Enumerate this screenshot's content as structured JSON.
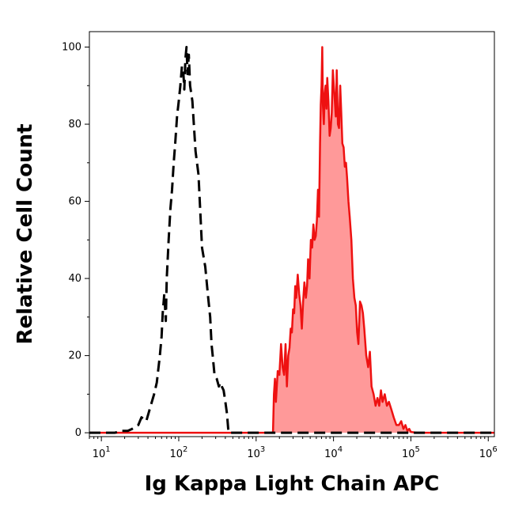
{
  "chart_data": {
    "type": "area",
    "title": "",
    "xlabel": "Ig Kappa Light Chain APC",
    "ylabel": "Relative Cell Count",
    "x_scale": "log",
    "xlim": [
      7,
      1200000
    ],
    "ylim": [
      -1,
      104
    ],
    "x_ticks": [
      {
        "value": 10,
        "base": "10",
        "exp": "1"
      },
      {
        "value": 100,
        "base": "10",
        "exp": "2"
      },
      {
        "value": 1000,
        "base": "10",
        "exp": "3"
      },
      {
        "value": 10000,
        "base": "10",
        "exp": "4"
      },
      {
        "value": 100000,
        "base": "10",
        "exp": "5"
      },
      {
        "value": 1000000,
        "base": "10",
        "exp": "6"
      }
    ],
    "y_ticks": [
      0,
      20,
      40,
      60,
      80,
      100
    ],
    "grid": false,
    "legend": "none",
    "series": [
      {
        "style": "dashed",
        "color": "#000000",
        "fill": "none",
        "points": [
          [
            7,
            0
          ],
          [
            15,
            0
          ],
          [
            18,
            0.5
          ],
          [
            22,
            0.5
          ],
          [
            25,
            1
          ],
          [
            30,
            2
          ],
          [
            33,
            4
          ],
          [
            38,
            3
          ],
          [
            42,
            6
          ],
          [
            48,
            10
          ],
          [
            52,
            13
          ],
          [
            57,
            20
          ],
          [
            60,
            25
          ],
          [
            62,
            31
          ],
          [
            65,
            36
          ],
          [
            68,
            29
          ],
          [
            70,
            40
          ],
          [
            74,
            50
          ],
          [
            78,
            58
          ],
          [
            82,
            63
          ],
          [
            86,
            70
          ],
          [
            90,
            75
          ],
          [
            95,
            82
          ],
          [
            100,
            86
          ],
          [
            105,
            90
          ],
          [
            110,
            95
          ],
          [
            115,
            93
          ],
          [
            118,
            89
          ],
          [
            122,
            97
          ],
          [
            126,
            100
          ],
          [
            130,
            93
          ],
          [
            135,
            98
          ],
          [
            140,
            90
          ],
          [
            150,
            86
          ],
          [
            165,
            73
          ],
          [
            180,
            67
          ],
          [
            200,
            48
          ],
          [
            220,
            43
          ],
          [
            240,
            35
          ],
          [
            255,
            30
          ],
          [
            265,
            23
          ],
          [
            275,
            20
          ],
          [
            290,
            15
          ],
          [
            310,
            14
          ],
          [
            330,
            12
          ],
          [
            345,
            13
          ],
          [
            360,
            12
          ],
          [
            380,
            11
          ],
          [
            400,
            8
          ],
          [
            420,
            5
          ],
          [
            440,
            0
          ],
          [
            700,
            0
          ],
          [
            1000,
            0
          ],
          [
            2000,
            0
          ],
          [
            5000,
            0
          ],
          [
            10000,
            0
          ],
          [
            30000,
            0
          ],
          [
            1200000,
            0
          ]
        ]
      },
      {
        "style": "solid",
        "color": "#ee1111",
        "fill": "#ff9999",
        "points": [
          [
            7,
            0
          ],
          [
            1500,
            0
          ],
          [
            1650,
            0
          ],
          [
            1700,
            10
          ],
          [
            1750,
            14
          ],
          [
            1800,
            8
          ],
          [
            1900,
            16
          ],
          [
            2000,
            15
          ],
          [
            2100,
            23
          ],
          [
            2200,
            17
          ],
          [
            2300,
            15
          ],
          [
            2400,
            23
          ],
          [
            2500,
            12
          ],
          [
            2600,
            20
          ],
          [
            2700,
            22
          ],
          [
            2800,
            27
          ],
          [
            2900,
            26
          ],
          [
            3000,
            32
          ],
          [
            3100,
            31
          ],
          [
            3200,
            38
          ],
          [
            3300,
            35
          ],
          [
            3450,
            41
          ],
          [
            3600,
            36
          ],
          [
            3750,
            33
          ],
          [
            3900,
            27
          ],
          [
            4050,
            34
          ],
          [
            4200,
            39
          ],
          [
            4400,
            35
          ],
          [
            4550,
            38
          ],
          [
            4700,
            45
          ],
          [
            4900,
            40
          ],
          [
            5100,
            50
          ],
          [
            5300,
            48
          ],
          [
            5500,
            54
          ],
          [
            5700,
            50
          ],
          [
            5900,
            51
          ],
          [
            6100,
            55
          ],
          [
            6300,
            63
          ],
          [
            6500,
            56
          ],
          [
            6700,
            75
          ],
          [
            6850,
            85
          ],
          [
            7000,
            90
          ],
          [
            7150,
            100
          ],
          [
            7300,
            85
          ],
          [
            7500,
            80
          ],
          [
            7700,
            88
          ],
          [
            7900,
            90
          ],
          [
            8100,
            84
          ],
          [
            8300,
            92
          ],
          [
            8600,
            86
          ],
          [
            8900,
            77
          ],
          [
            9200,
            79
          ],
          [
            9500,
            83
          ],
          [
            9800,
            94
          ],
          [
            10100,
            90
          ],
          [
            10400,
            86
          ],
          [
            10700,
            82
          ],
          [
            11000,
            94
          ],
          [
            11400,
            80
          ],
          [
            11800,
            79
          ],
          [
            12200,
            90
          ],
          [
            12600,
            83
          ],
          [
            13000,
            75
          ],
          [
            13500,
            74
          ],
          [
            14000,
            69
          ],
          [
            14500,
            70
          ],
          [
            15000,
            66
          ],
          [
            15600,
            60
          ],
          [
            16200,
            56
          ],
          [
            17000,
            50
          ],
          [
            17800,
            40
          ],
          [
            18600,
            35
          ],
          [
            19400,
            33
          ],
          [
            20200,
            26
          ],
          [
            21000,
            23
          ],
          [
            22000,
            34
          ],
          [
            23000,
            33
          ],
          [
            24000,
            31
          ],
          [
            25000,
            27
          ],
          [
            26500,
            20
          ],
          [
            28000,
            17
          ],
          [
            29500,
            21
          ],
          [
            31000,
            12
          ],
          [
            33000,
            10
          ],
          [
            35000,
            7
          ],
          [
            37000,
            9
          ],
          [
            39000,
            7
          ],
          [
            41000,
            11
          ],
          [
            43000,
            8
          ],
          [
            46000,
            10
          ],
          [
            49000,
            7
          ],
          [
            52000,
            8
          ],
          [
            56000,
            6
          ],
          [
            60000,
            4
          ],
          [
            65000,
            2
          ],
          [
            70000,
            2
          ],
          [
            75000,
            3
          ],
          [
            80000,
            1
          ],
          [
            85000,
            2
          ],
          [
            90000,
            0.5
          ],
          [
            95000,
            1
          ],
          [
            100000,
            0.2
          ],
          [
            120000,
            0
          ],
          [
            1200000,
            0
          ]
        ]
      }
    ]
  }
}
